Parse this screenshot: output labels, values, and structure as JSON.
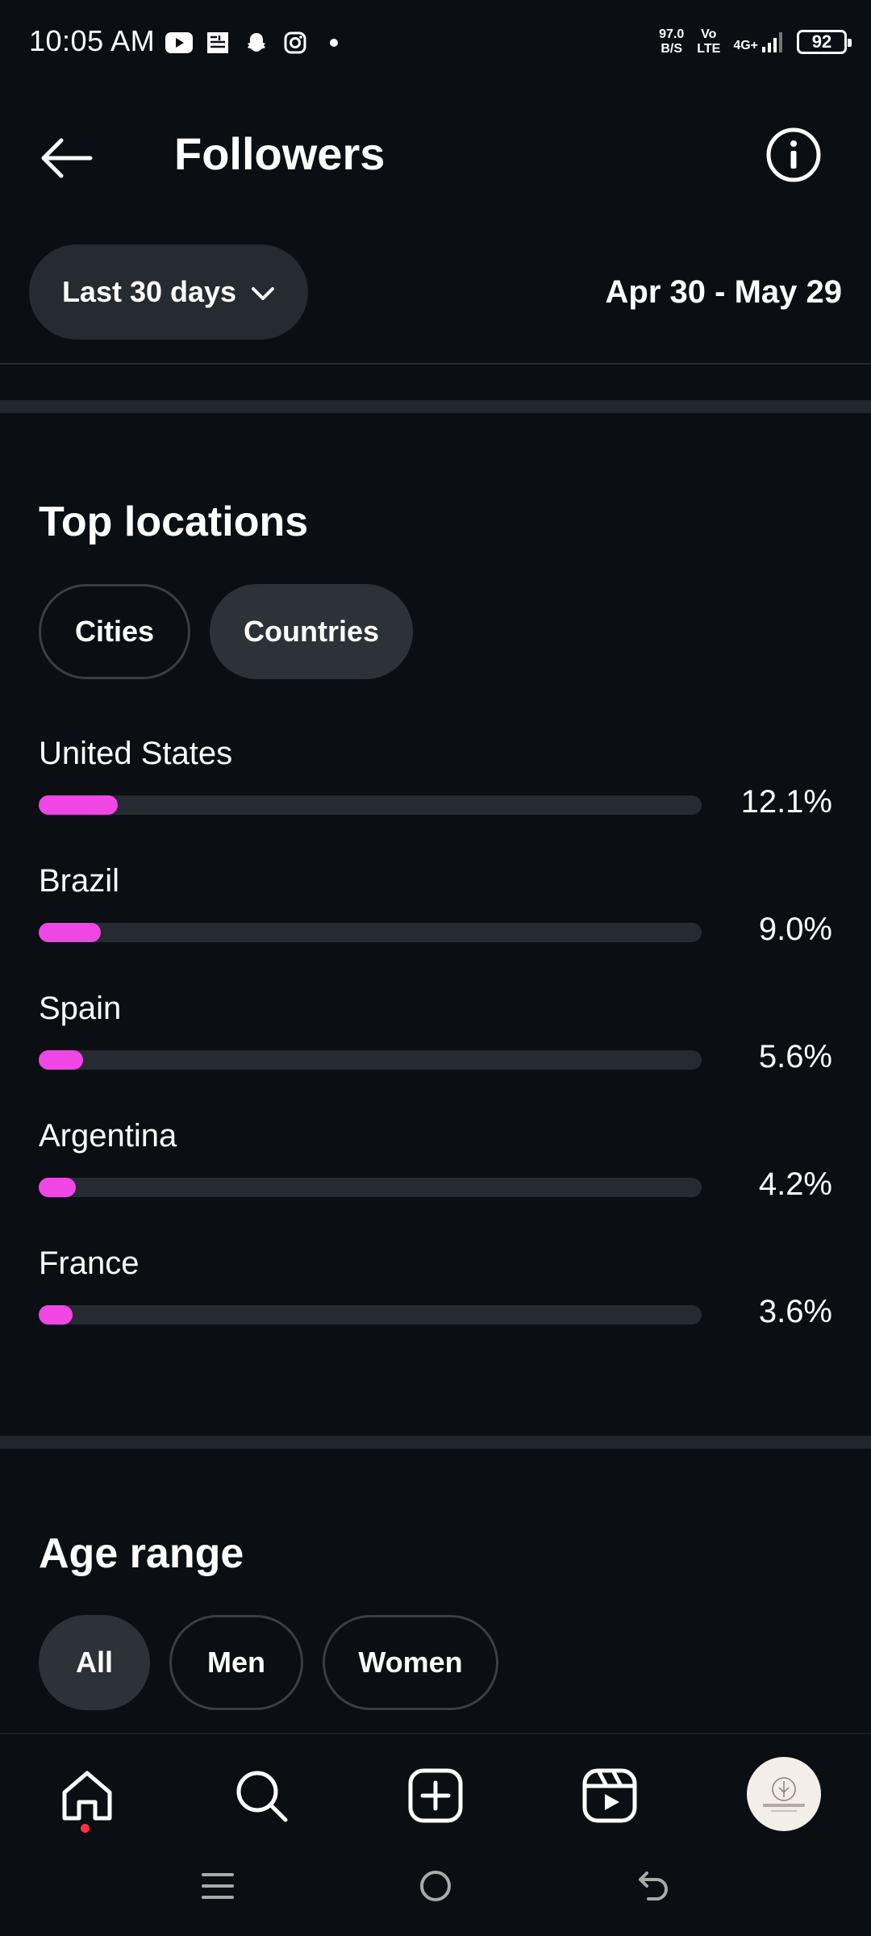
{
  "status_bar": {
    "time": "10:05 AM",
    "net_speed_value": "97.0",
    "net_speed_unit": "B/S",
    "volte_top": "Vo",
    "volte_bottom": "LTE",
    "network": "4G+",
    "battery": "92"
  },
  "header": {
    "title": "Followers"
  },
  "filter": {
    "range_label": "Last 30 days",
    "dates": "Apr 30 - May 29"
  },
  "top_locations": {
    "title": "Top locations",
    "chips": [
      {
        "label": "Cities",
        "selected": false
      },
      {
        "label": "Countries",
        "selected": true
      }
    ],
    "accent_color": "#f046e6",
    "items": [
      {
        "name": "United States",
        "percent_label": "12.1%",
        "percent": 12.1
      },
      {
        "name": "Brazil",
        "percent_label": "9.0%",
        "percent": 9.0
      },
      {
        "name": "Spain",
        "percent_label": "5.6%",
        "percent": 5.6
      },
      {
        "name": "Argentina",
        "percent_label": "4.2%",
        "percent": 4.2
      },
      {
        "name": "France",
        "percent_label": "3.6%",
        "percent": 3.6
      }
    ]
  },
  "age_range": {
    "title": "Age range",
    "chips": [
      {
        "label": "All",
        "selected": true
      },
      {
        "label": "Men",
        "selected": false
      },
      {
        "label": "Women",
        "selected": false
      }
    ]
  },
  "bottom_nav": {
    "items": [
      "home-icon",
      "search-icon",
      "create-icon",
      "reels-icon",
      "profile-avatar"
    ]
  }
}
